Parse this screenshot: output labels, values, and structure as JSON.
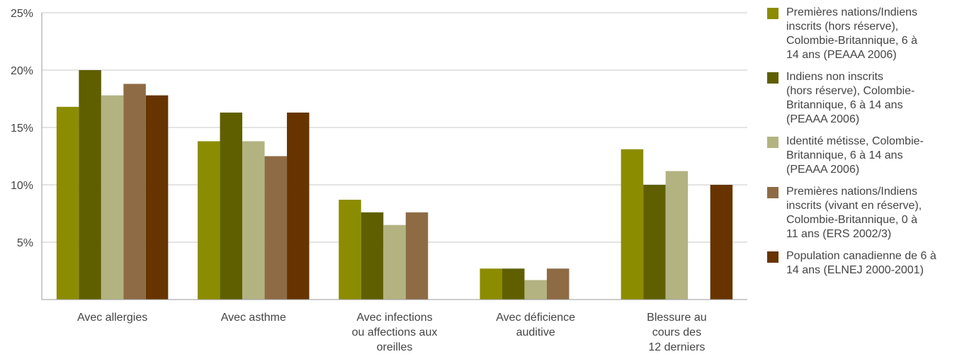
{
  "chart_data": {
    "type": "bar",
    "title": "",
    "xlabel": "",
    "ylabel": "",
    "ylim": [
      0,
      25
    ],
    "yticks": [
      "5%",
      "10%",
      "15%",
      "20%",
      "25%"
    ],
    "ytick_values": [
      5,
      10,
      15,
      20,
      25
    ],
    "grid": true,
    "legend_position": "right",
    "categories": [
      [
        "Avec allergies"
      ],
      [
        "Avec asthme"
      ],
      [
        "Avec infections",
        "ou affections aux",
        "oreilles"
      ],
      [
        "Avec déficience",
        "auditive"
      ],
      [
        "Blessure au",
        "cours des",
        "12 derniers"
      ]
    ],
    "series": [
      {
        "name": "Premières nations/Indiens inscrits (hors réserve), Colombie-Britannique, 6 à 14 ans (PEAAA 2006)",
        "name_lines": [
          "Premières nations/Indiens",
          "inscrits (hors réserve),",
          "Colombie-Britannique, 6 à",
          "14 ans (PEAAA 2006)"
        ],
        "color": "#8c8c00",
        "values": [
          16.8,
          13.8,
          8.7,
          2.7,
          13.1
        ]
      },
      {
        "name": "Indiens non inscrits (hors réserve), Colombie-Britannique, 6 à 14 ans (PEAAA 2006)",
        "name_lines": [
          "Indiens non inscrits",
          "(hors réserve), Colombie-",
          "Britannique, 6 à 14 ans",
          "(PEAAA 2006)"
        ],
        "color": "#5f5f00",
        "values": [
          20.0,
          16.3,
          7.6,
          2.7,
          10.0
        ]
      },
      {
        "name": "Identité métisse, Colombie-Britannique, 6 à 14 ans (PEAAA 2006)",
        "name_lines": [
          "Identité métisse, Colombie-",
          "Britannique, 6 à 14 ans",
          "(PEAAA 2006)"
        ],
        "color": "#b3b382",
        "values": [
          17.8,
          13.8,
          6.5,
          1.7,
          11.2
        ]
      },
      {
        "name": "Premières nations/Indiens inscrits (vivant en réserve), Colombie-Britannique, 0 à 11 ans (ERS 2002/3)",
        "name_lines": [
          "Premières nations/Indiens",
          "inscrits (vivant en réserve),",
          "Colombie-Britannique, 0 à",
          "11 ans (ERS 2002/3)"
        ],
        "color": "#8e6b45",
        "values": [
          18.8,
          12.5,
          7.6,
          2.7,
          null
        ]
      },
      {
        "name": "Population canadienne de 6 à 14 ans (ELNEJ 2000-2001)",
        "name_lines": [
          "Population canadienne de 6 à",
          "14 ans (ELNEJ 2000-2001)"
        ],
        "color": "#673400",
        "values": [
          17.8,
          16.3,
          null,
          null,
          10.0
        ]
      }
    ]
  }
}
